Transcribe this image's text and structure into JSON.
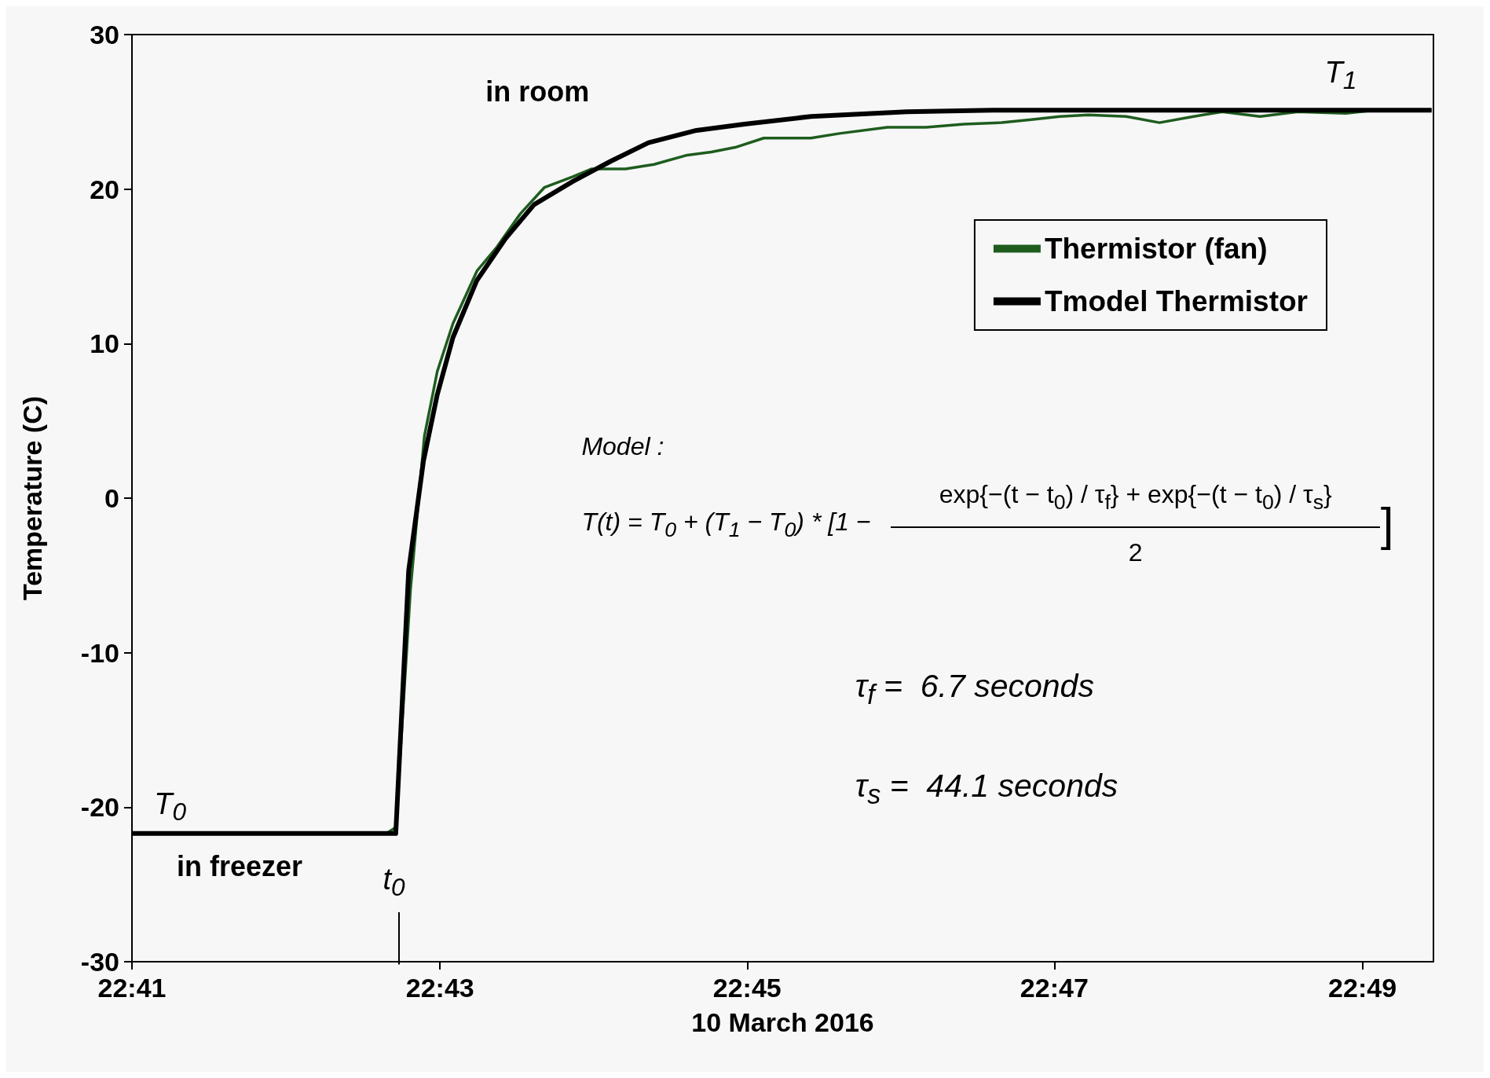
{
  "chart_data": {
    "type": "line",
    "xlabel": "10 March 2016",
    "ylabel": "Temperature (C)",
    "xlim": [
      22.6833,
      22.8244
    ],
    "xticks": [
      {
        "value": 22.6833,
        "label": "22:41"
      },
      {
        "value": 22.7167,
        "label": "22:43"
      },
      {
        "value": 22.75,
        "label": "22:45"
      },
      {
        "value": 22.7833,
        "label": "22:47"
      },
      {
        "value": 22.8167,
        "label": "22:49"
      }
    ],
    "ylim": [
      -30,
      30
    ],
    "yticks": [
      -30,
      -20,
      -10,
      0,
      10,
      20,
      30
    ],
    "legend": "top right",
    "series": [
      {
        "name": "Thermistor (fan)",
        "color": "#1e5c1e",
        "x": [
          22.6833,
          22.7109,
          22.7119,
          22.7135,
          22.715,
          22.7164,
          22.7181,
          22.7207,
          22.7228,
          22.7254,
          22.728,
          22.7311,
          22.7331,
          22.7368,
          22.7399,
          22.7435,
          22.7461,
          22.7487,
          22.7518,
          22.7569,
          22.76,
          22.7652,
          22.7694,
          22.7735,
          22.7776,
          22.7808,
          22.7839,
          22.787,
          22.7911,
          22.7947,
          22.7984,
          22.8015,
          22.8056,
          22.8097,
          22.8149,
          22.818,
          22.8242
        ],
        "values": [
          -21.7,
          -21.7,
          -21.3,
          -5.9,
          4.0,
          8.2,
          11.3,
          14.7,
          16.2,
          18.4,
          20.1,
          20.8,
          21.3,
          21.3,
          21.6,
          22.2,
          22.4,
          22.7,
          23.3,
          23.3,
          23.6,
          24.0,
          24.0,
          24.2,
          24.3,
          24.5,
          24.7,
          24.8,
          24.7,
          24.3,
          24.7,
          25.0,
          24.7,
          25.0,
          24.9,
          25.1,
          25.1
        ]
      },
      {
        "name": "Tmodel Thermistor",
        "color": "#000000",
        "x": [
          22.6833,
          22.7119,
          22.7133,
          22.7149,
          22.7164,
          22.7181,
          22.7207,
          22.7238,
          22.7269,
          22.7311,
          22.7352,
          22.7393,
          22.7445,
          22.7497,
          22.7569,
          22.7673,
          22.7766,
          22.8242
        ],
        "values": [
          -21.7,
          -21.7,
          -4.7,
          2.4,
          6.7,
          10.4,
          14.1,
          16.8,
          19.0,
          20.5,
          21.8,
          23.0,
          23.8,
          24.2,
          24.7,
          25.0,
          25.1,
          25.1
        ]
      }
    ],
    "annotations": [
      "in room",
      "in freezer",
      {
        "text": "T$_{0}$",
        "x": 22.6857,
        "y": -21.7
      },
      {
        "text": "T$_{1}$",
        "x": 22.8138,
        "y": 25.1
      },
      "t$_{0}$",
      "Model :",
      "T(t) = T$_{0}$ + (T$_{1}$ − T$_{0}$) * [1 −",
      "exp{−(t − t$_{0}$) / τ$_{f}$} + exp{−(t − t$_{0}$) / τ$_{s}$}",
      "2",
      "]",
      "τ$_{f}$ =  6.7 seconds",
      "τ$_{s}$ =  44.1 seconds"
    ]
  }
}
